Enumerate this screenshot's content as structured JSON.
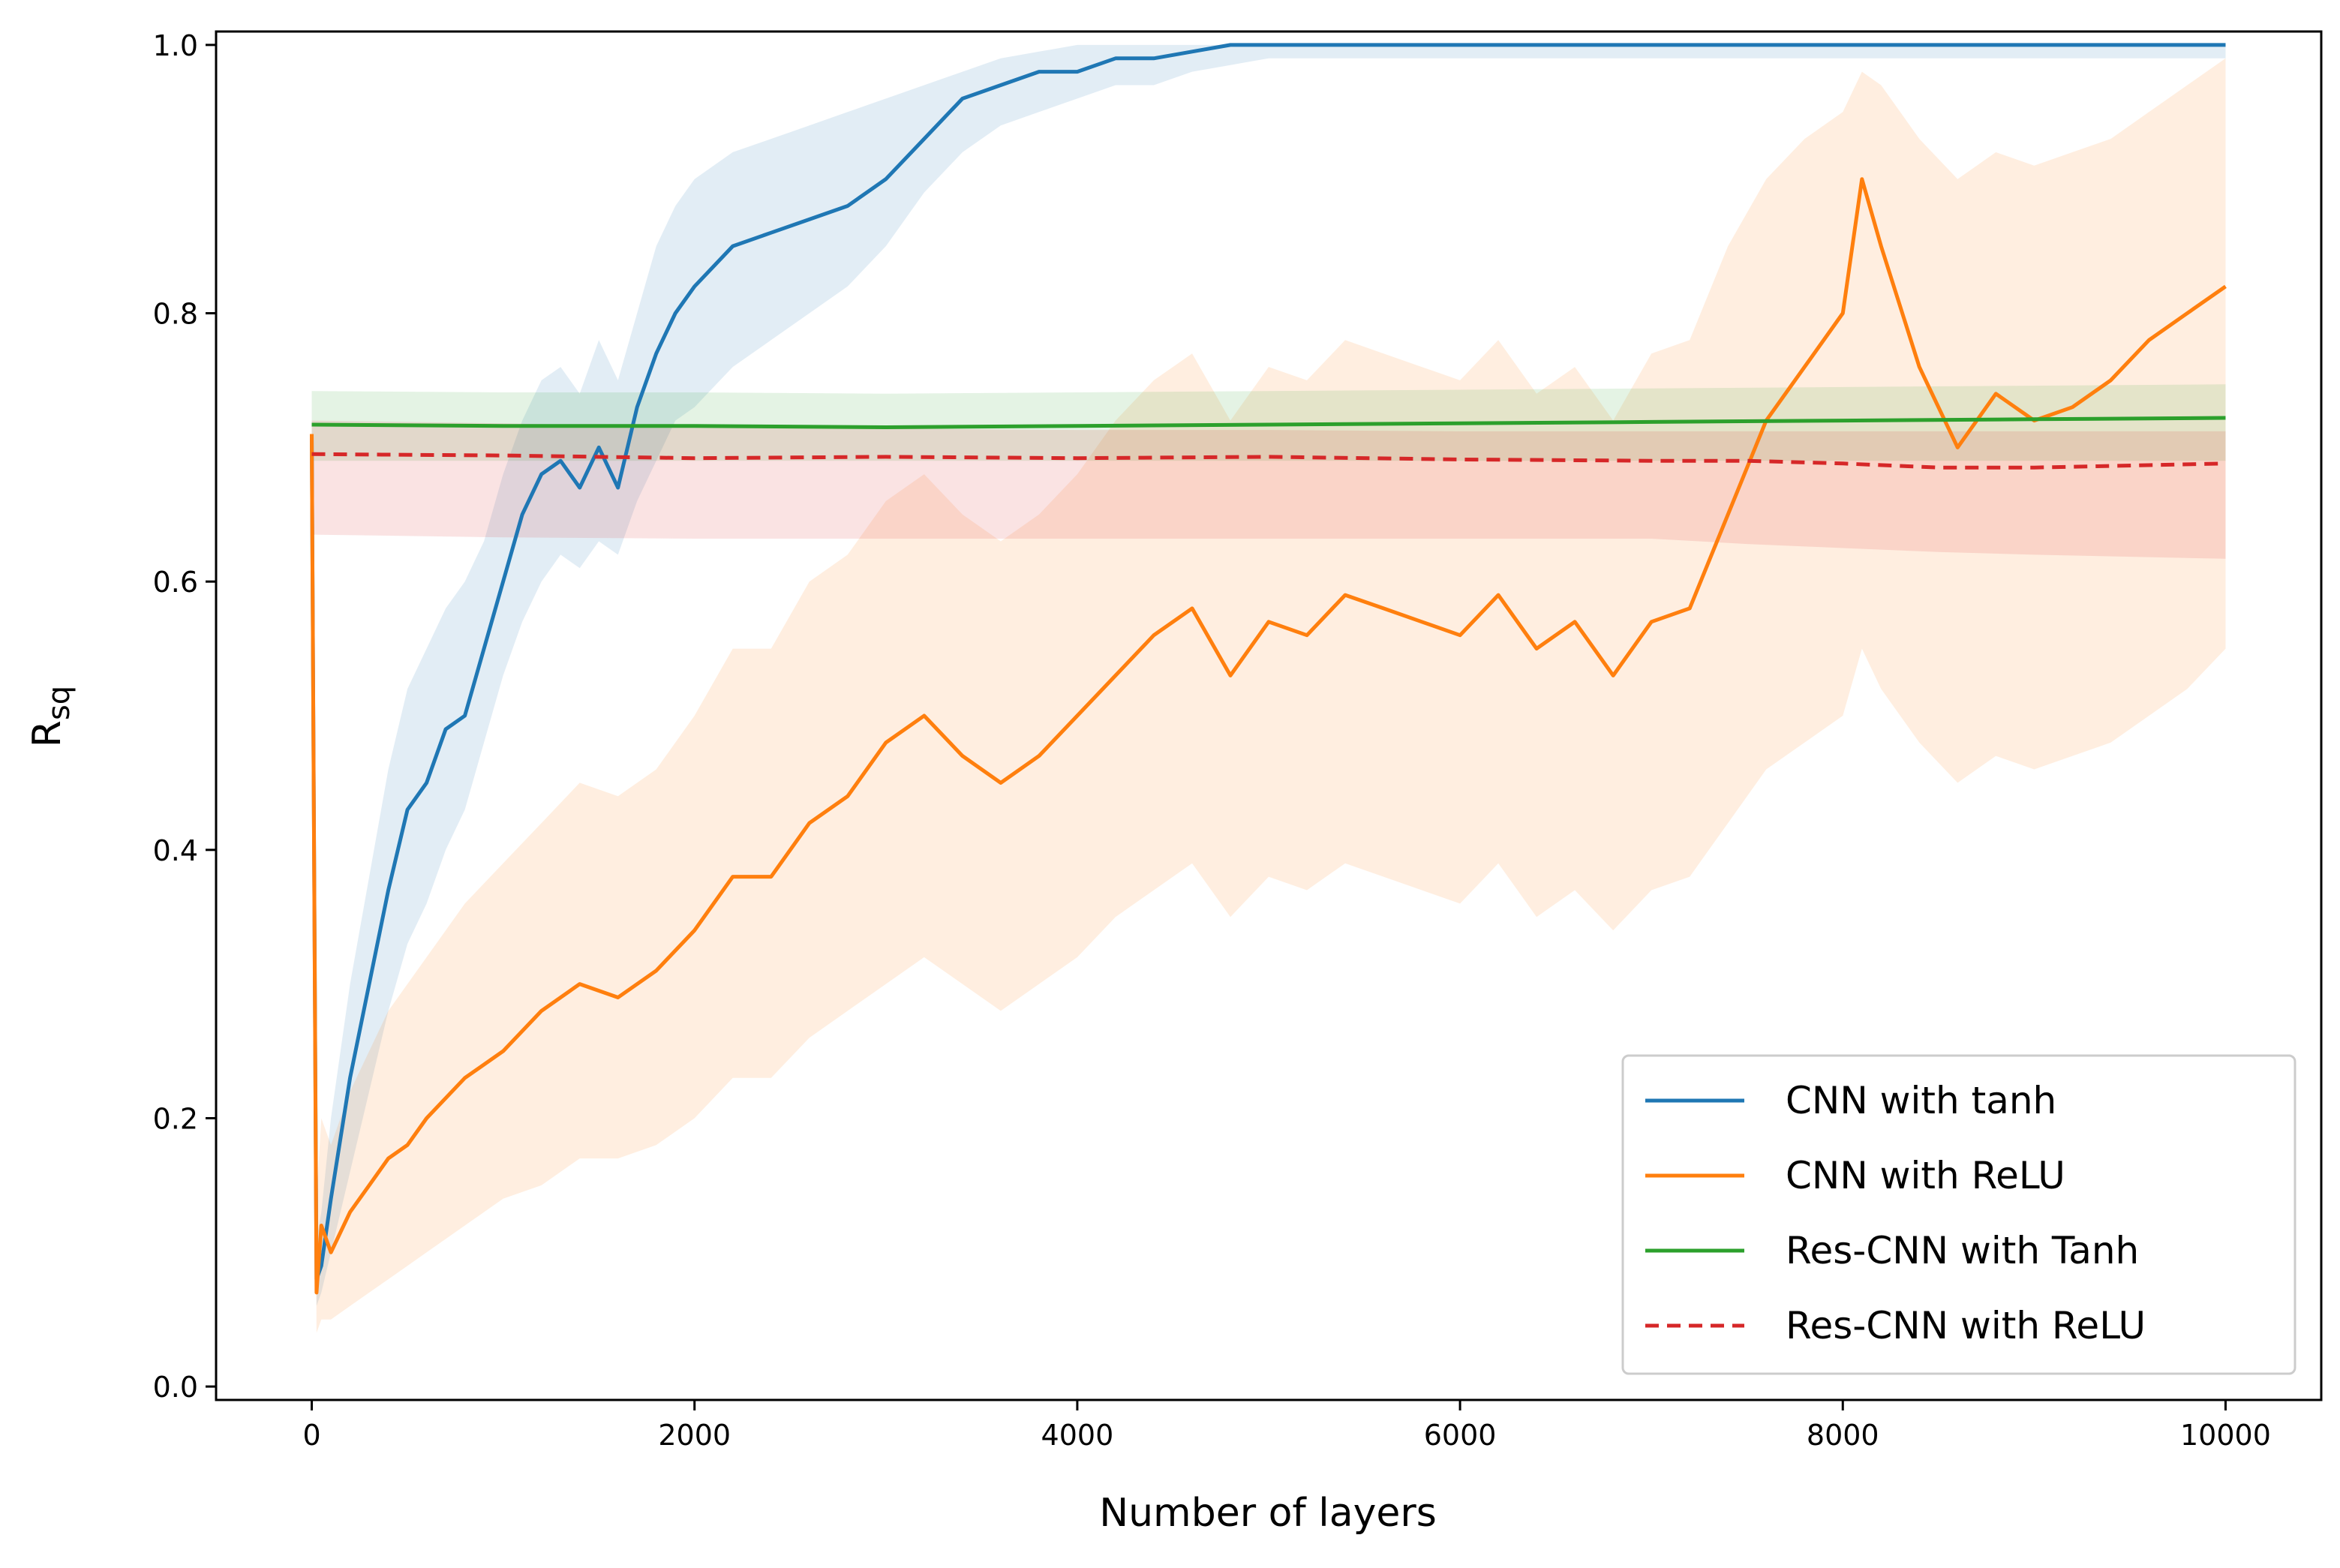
{
  "chart_data": {
    "type": "line",
    "title": "",
    "xlabel": "Number of layers",
    "ylabel_main": "R",
    "ylabel_sub": "sq",
    "xlim": [
      -500,
      10500
    ],
    "ylim": [
      -0.01,
      1.01
    ],
    "xticks": [
      0,
      2000,
      4000,
      6000,
      8000,
      10000
    ],
    "xtick_labels": [
      "0",
      "2000",
      "4000",
      "6000",
      "8000",
      "10000"
    ],
    "yticks": [
      0.0,
      0.2,
      0.4,
      0.6,
      0.8,
      1.0
    ],
    "ytick_labels": [
      "0.0",
      "0.2",
      "0.4",
      "0.6",
      "0.8",
      "1.0"
    ],
    "grid": false,
    "legend_position": "lower-right",
    "series": [
      {
        "name": "CNN with tanh",
        "color": "#1f77b4",
        "style": "solid",
        "x": [
          0,
          25,
          50,
          100,
          200,
          300,
          400,
          500,
          600,
          700,
          800,
          900,
          1000,
          1100,
          1200,
          1300,
          1400,
          1500,
          1600,
          1700,
          1800,
          1900,
          2000,
          2200,
          2400,
          2600,
          2800,
          3000,
          3200,
          3400,
          3600,
          3800,
          4000,
          4200,
          4400,
          4600,
          4800,
          5000,
          5500,
          6000,
          7000,
          8000,
          9000,
          10000
        ],
        "y": [
          0.71,
          0.08,
          0.09,
          0.14,
          0.23,
          0.3,
          0.37,
          0.43,
          0.45,
          0.49,
          0.5,
          0.55,
          0.6,
          0.65,
          0.68,
          0.69,
          0.67,
          0.7,
          0.67,
          0.73,
          0.77,
          0.8,
          0.82,
          0.85,
          0.86,
          0.87,
          0.88,
          0.9,
          0.93,
          0.96,
          0.97,
          0.98,
          0.98,
          0.99,
          0.99,
          0.995,
          1.0,
          1.0,
          1.0,
          1.0,
          1.0,
          1.0,
          1.0,
          1.0
        ],
        "band_lower": [
          0.71,
          0.06,
          0.07,
          0.1,
          0.16,
          0.22,
          0.28,
          0.33,
          0.36,
          0.4,
          0.43,
          0.48,
          0.53,
          0.57,
          0.6,
          0.62,
          0.61,
          0.63,
          0.62,
          0.66,
          0.69,
          0.72,
          0.73,
          0.76,
          0.78,
          0.8,
          0.82,
          0.85,
          0.89,
          0.92,
          0.94,
          0.95,
          0.96,
          0.97,
          0.97,
          0.98,
          0.985,
          0.99,
          0.99,
          0.99,
          0.99,
          0.99,
          0.99,
          0.99
        ],
        "band_upper": [
          0.71,
          0.11,
          0.13,
          0.2,
          0.3,
          0.38,
          0.46,
          0.52,
          0.55,
          0.58,
          0.6,
          0.63,
          0.68,
          0.72,
          0.75,
          0.76,
          0.74,
          0.78,
          0.75,
          0.8,
          0.85,
          0.88,
          0.9,
          0.92,
          0.93,
          0.94,
          0.95,
          0.96,
          0.97,
          0.98,
          0.99,
          0.995,
          1.0,
          1.0,
          1.0,
          1.0,
          1.0,
          1.0,
          1.0,
          1.0,
          1.0,
          1.0,
          1.0,
          1.0
        ]
      },
      {
        "name": "CNN with ReLU",
        "color": "#ff7f0e",
        "style": "solid",
        "x": [
          0,
          25,
          50,
          100,
          200,
          300,
          400,
          500,
          600,
          800,
          1000,
          1200,
          1400,
          1600,
          1800,
          2000,
          2200,
          2400,
          2600,
          2800,
          3000,
          3200,
          3400,
          3600,
          3800,
          4000,
          4200,
          4400,
          4600,
          4800,
          5000,
          5200,
          5400,
          5600,
          5800,
          6000,
          6200,
          6400,
          6600,
          6800,
          7000,
          7200,
          7400,
          7600,
          7800,
          8000,
          8100,
          8200,
          8400,
          8600,
          8800,
          9000,
          9200,
          9400,
          9600,
          9800,
          10000
        ],
        "y": [
          0.71,
          0.07,
          0.12,
          0.1,
          0.13,
          0.15,
          0.17,
          0.18,
          0.2,
          0.23,
          0.25,
          0.28,
          0.3,
          0.29,
          0.31,
          0.34,
          0.38,
          0.38,
          0.42,
          0.44,
          0.48,
          0.5,
          0.47,
          0.45,
          0.47,
          0.5,
          0.53,
          0.56,
          0.58,
          0.53,
          0.57,
          0.56,
          0.59,
          0.58,
          0.57,
          0.56,
          0.59,
          0.55,
          0.57,
          0.53,
          0.57,
          0.58,
          0.65,
          0.72,
          0.76,
          0.8,
          0.9,
          0.85,
          0.76,
          0.7,
          0.74,
          0.72,
          0.73,
          0.75,
          0.78,
          0.8,
          0.82
        ],
        "band_lower": [
          0.71,
          0.04,
          0.05,
          0.05,
          0.06,
          0.07,
          0.08,
          0.09,
          0.1,
          0.12,
          0.14,
          0.15,
          0.17,
          0.17,
          0.18,
          0.2,
          0.23,
          0.23,
          0.26,
          0.28,
          0.3,
          0.32,
          0.3,
          0.28,
          0.3,
          0.32,
          0.35,
          0.37,
          0.39,
          0.35,
          0.38,
          0.37,
          0.39,
          0.38,
          0.37,
          0.36,
          0.39,
          0.35,
          0.37,
          0.34,
          0.37,
          0.38,
          0.42,
          0.46,
          0.48,
          0.5,
          0.55,
          0.52,
          0.48,
          0.45,
          0.47,
          0.46,
          0.47,
          0.48,
          0.5,
          0.52,
          0.55
        ],
        "band_upper": [
          0.71,
          0.14,
          0.2,
          0.18,
          0.22,
          0.25,
          0.28,
          0.3,
          0.32,
          0.36,
          0.39,
          0.42,
          0.45,
          0.44,
          0.46,
          0.5,
          0.55,
          0.55,
          0.6,
          0.62,
          0.66,
          0.68,
          0.65,
          0.63,
          0.65,
          0.68,
          0.72,
          0.75,
          0.77,
          0.72,
          0.76,
          0.75,
          0.78,
          0.77,
          0.76,
          0.75,
          0.78,
          0.74,
          0.76,
          0.72,
          0.77,
          0.78,
          0.85,
          0.9,
          0.93,
          0.95,
          0.98,
          0.97,
          0.93,
          0.9,
          0.92,
          0.91,
          0.92,
          0.93,
          0.95,
          0.97,
          0.99
        ]
      },
      {
        "name": "Res-CNN with Tanh",
        "color": "#2ca02c",
        "style": "solid",
        "x": [
          0,
          1000,
          2000,
          3000,
          4000,
          5000,
          6000,
          7000,
          8000,
          9000,
          10000
        ],
        "y": [
          0.717,
          0.716,
          0.716,
          0.715,
          0.716,
          0.717,
          0.718,
          0.719,
          0.72,
          0.721,
          0.722
        ],
        "band_lower": [
          0.69,
          0.69,
          0.69,
          0.69,
          0.69,
          0.69,
          0.69,
          0.69,
          0.69,
          0.69,
          0.69
        ],
        "band_upper": [
          0.742,
          0.741,
          0.741,
          0.74,
          0.741,
          0.742,
          0.743,
          0.744,
          0.745,
          0.746,
          0.747
        ]
      },
      {
        "name": "Res-CNN with ReLU",
        "color": "#d62728",
        "style": "dashed",
        "x": [
          0,
          1000,
          2000,
          3000,
          4000,
          5000,
          6000,
          7000,
          7500,
          8000,
          8500,
          9000,
          10000
        ],
        "y": [
          0.695,
          0.694,
          0.692,
          0.693,
          0.692,
          0.693,
          0.691,
          0.69,
          0.69,
          0.688,
          0.685,
          0.685,
          0.688
        ],
        "band_lower": [
          0.635,
          0.633,
          0.632,
          0.632,
          0.632,
          0.632,
          0.632,
          0.632,
          0.628,
          0.625,
          0.622,
          0.62,
          0.617
        ],
        "band_upper": [
          0.72,
          0.718,
          0.715,
          0.714,
          0.713,
          0.713,
          0.712,
          0.712,
          0.712,
          0.712,
          0.712,
          0.712,
          0.712
        ]
      }
    ]
  }
}
